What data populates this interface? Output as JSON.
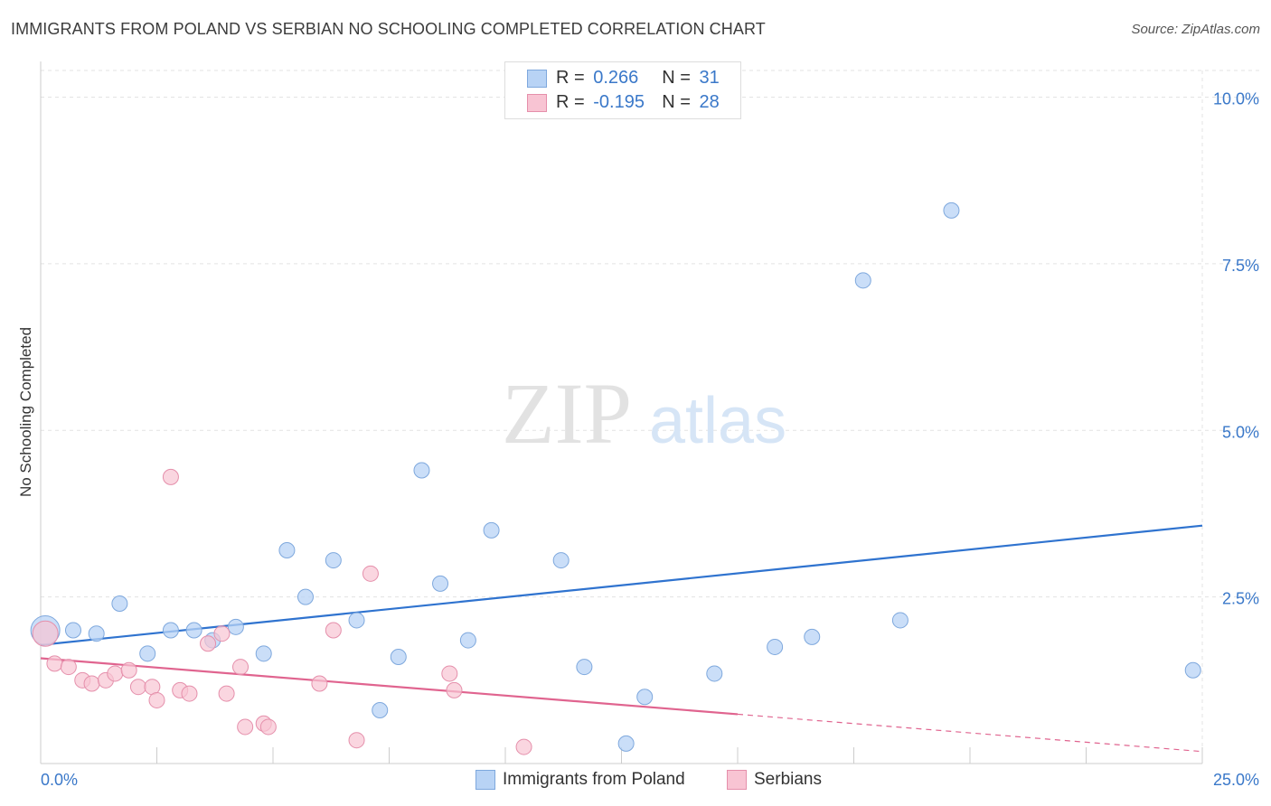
{
  "title": "IMMIGRANTS FROM POLAND VS SERBIAN NO SCHOOLING COMPLETED CORRELATION CHART",
  "source": "Source: ZipAtlas.com",
  "watermark": {
    "zip": "ZIP",
    "atlas": "atlas"
  },
  "legend": {
    "rows": [
      {
        "r_label": "R =",
        "r_value": "0.266",
        "n_label": "N =",
        "n_value": "31"
      },
      {
        "r_label": "R =",
        "r_value": "-0.195",
        "n_label": "N =",
        "n_value": "28"
      }
    ]
  },
  "colors": {
    "poland_fill": "#b8d3f5",
    "poland_stroke": "#7ea8dd",
    "poland_line": "#2f73cf",
    "serbian_fill": "#f8c4d3",
    "serbian_stroke": "#e58fab",
    "serbian_line": "#e0648f",
    "grid": "#e3e3e3",
    "tick_label": "#3a78c9"
  },
  "chart_data": {
    "type": "scatter",
    "title": "IMMIGRANTS FROM POLAND VS SERBIAN NO SCHOOLING COMPLETED CORRELATION CHART",
    "xlabel": "",
    "ylabel": "No Schooling Completed",
    "xlim": [
      0,
      25
    ],
    "ylim": [
      0,
      10.4
    ],
    "x_tick_labels": [
      "0.0%",
      "25.0%"
    ],
    "y_ticks": [
      2.5,
      5.0,
      7.5,
      10.0
    ],
    "y_tick_labels": [
      "2.5%",
      "5.0%",
      "7.5%",
      "10.0%"
    ],
    "grid": true,
    "legend_position": "top-center",
    "series": [
      {
        "name": "Immigrants from Poland",
        "points": [
          [
            0.1,
            2.0
          ],
          [
            0.7,
            2.0
          ],
          [
            1.2,
            1.95
          ],
          [
            1.7,
            2.4
          ],
          [
            2.3,
            1.65
          ],
          [
            2.8,
            2.0
          ],
          [
            3.3,
            2.0
          ],
          [
            3.7,
            1.85
          ],
          [
            4.2,
            2.05
          ],
          [
            4.8,
            1.65
          ],
          [
            5.3,
            3.2
          ],
          [
            5.7,
            2.5
          ],
          [
            6.3,
            3.05
          ],
          [
            6.8,
            2.15
          ],
          [
            7.3,
            0.8
          ],
          [
            7.7,
            1.6
          ],
          [
            8.2,
            4.4
          ],
          [
            8.6,
            2.7
          ],
          [
            9.2,
            1.85
          ],
          [
            9.7,
            3.5
          ],
          [
            11.2,
            3.05
          ],
          [
            11.7,
            1.45
          ],
          [
            12.6,
            0.3
          ],
          [
            13.0,
            1.0
          ],
          [
            14.5,
            1.35
          ],
          [
            15.8,
            1.75
          ],
          [
            16.6,
            1.9
          ],
          [
            17.7,
            7.25
          ],
          [
            18.5,
            2.15
          ],
          [
            19.6,
            8.3
          ],
          [
            24.8,
            1.4
          ]
        ],
        "sizes_note": "largest point at x=0.1",
        "trend": {
          "x": [
            0,
            25
          ],
          "y": [
            1.78,
            3.57
          ]
        }
      },
      {
        "name": "Serbians",
        "points": [
          [
            0.1,
            1.95
          ],
          [
            0.3,
            1.5
          ],
          [
            0.6,
            1.45
          ],
          [
            0.9,
            1.25
          ],
          [
            1.1,
            1.2
          ],
          [
            1.4,
            1.25
          ],
          [
            1.6,
            1.35
          ],
          [
            1.9,
            1.4
          ],
          [
            2.1,
            1.15
          ],
          [
            2.4,
            1.15
          ],
          [
            2.5,
            0.95
          ],
          [
            2.8,
            4.3
          ],
          [
            3.0,
            1.1
          ],
          [
            3.2,
            1.05
          ],
          [
            3.6,
            1.8
          ],
          [
            3.9,
            1.95
          ],
          [
            4.0,
            1.05
          ],
          [
            4.3,
            1.45
          ],
          [
            4.4,
            0.55
          ],
          [
            4.8,
            0.6
          ],
          [
            4.9,
            0.55
          ],
          [
            6.0,
            1.2
          ],
          [
            6.3,
            2.0
          ],
          [
            6.8,
            0.35
          ],
          [
            7.1,
            2.85
          ],
          [
            8.8,
            1.35
          ],
          [
            8.9,
            1.1
          ],
          [
            10.4,
            0.25
          ]
        ],
        "trend": {
          "x": [
            0,
            15
          ],
          "y": [
            1.58,
            0.74
          ]
        },
        "trend_dashed": {
          "x": [
            15,
            25
          ],
          "y": [
            0.74,
            0.18
          ]
        }
      }
    ]
  },
  "bottom_legend": [
    {
      "label": "Immigrants from Poland"
    },
    {
      "label": "Serbians"
    }
  ]
}
